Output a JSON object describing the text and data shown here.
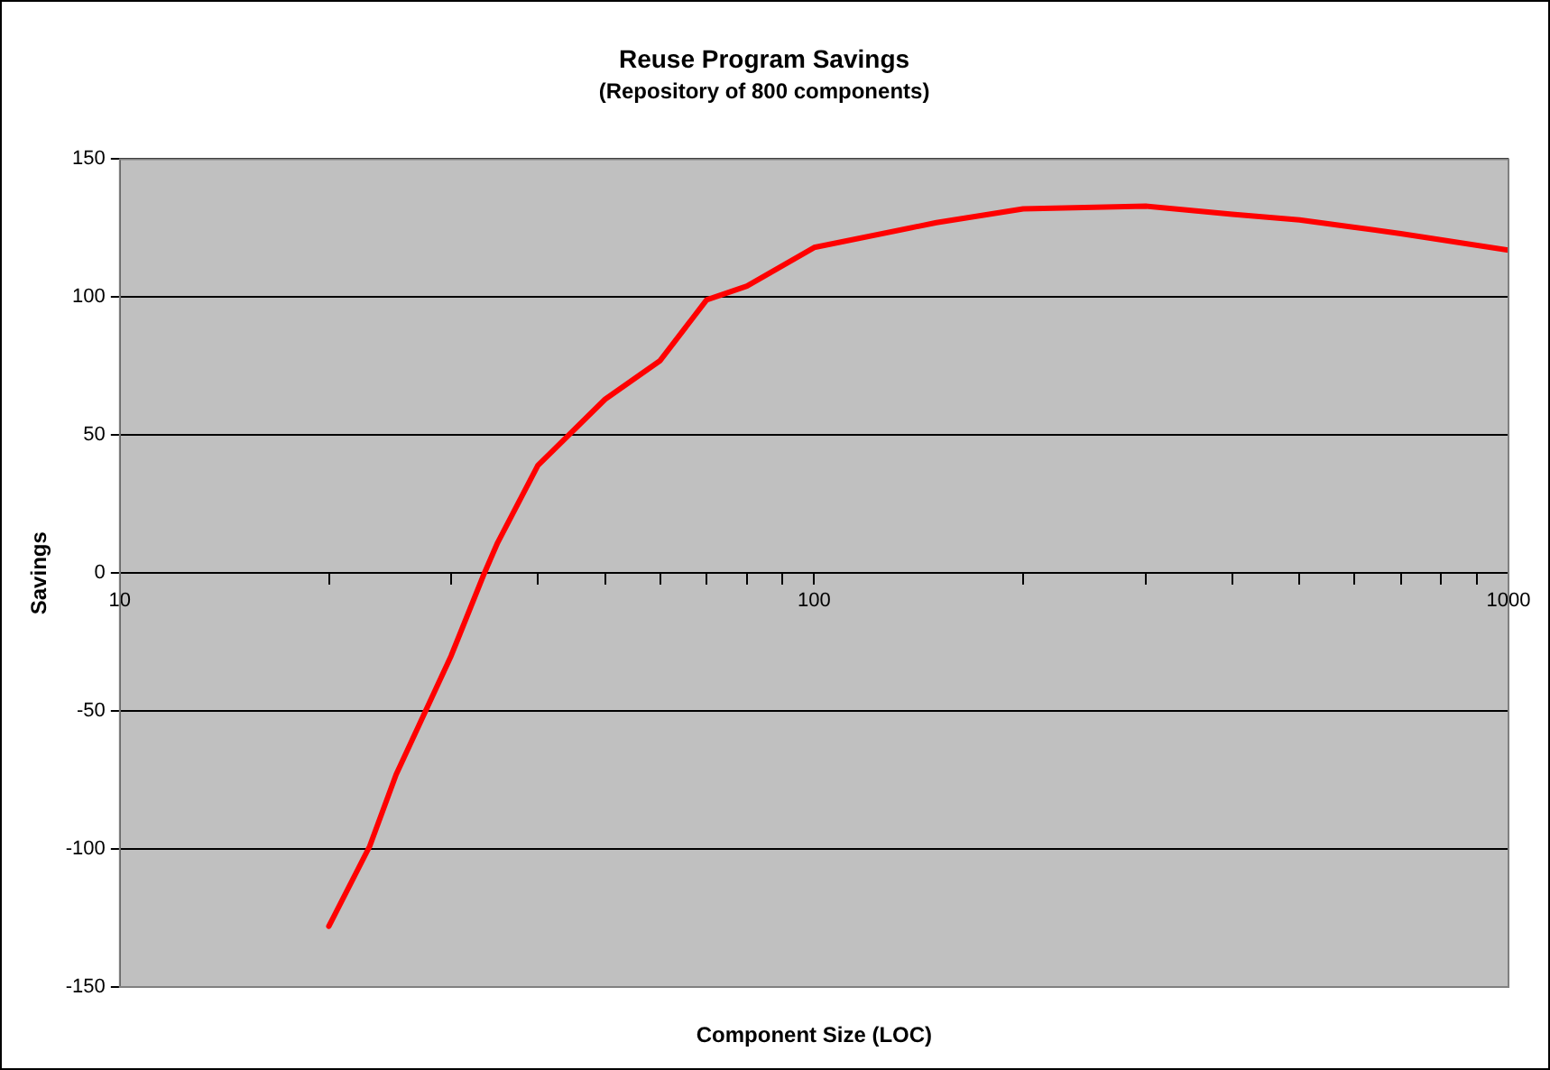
{
  "chart_data": {
    "type": "line",
    "title": "Reuse Program Savings",
    "subtitle": "(Repository of 800 components)",
    "xlabel": "Component Size (LOC)",
    "ylabel": "Savings",
    "log": "x",
    "xlim": [
      10,
      1000
    ],
    "xticks": [
      10,
      {
        "value": 20,
        "label": null
      },
      {
        "value": 30,
        "label": null
      },
      {
        "value": 40,
        "label": null
      },
      {
        "value": 50,
        "label": null
      },
      {
        "value": 60,
        "label": null
      },
      {
        "value": 70,
        "label": null
      },
      {
        "value": 80,
        "label": null
      },
      {
        "value": 90,
        "label": null
      },
      100,
      {
        "value": 200,
        "label": null
      },
      {
        "value": 300,
        "label": null
      },
      {
        "value": 400,
        "label": null
      },
      {
        "value": 500,
        "label": null
      },
      {
        "value": 600,
        "label": null
      },
      {
        "value": 700,
        "label": null
      },
      {
        "value": 800,
        "label": null
      },
      {
        "value": 900,
        "label": null
      },
      1000
    ],
    "ylim": [
      -150,
      150
    ],
    "yticks": [
      -150,
      -100,
      -50,
      0,
      50,
      100,
      150
    ],
    "grid": "y",
    "legend": false,
    "marker": "none",
    "line_style": "solid",
    "series": [
      {
        "color": "#ff0000",
        "x": [
          20,
          22.9,
          25,
          30,
          33.5,
          35,
          40,
          50,
          60,
          70,
          80,
          100,
          150,
          200,
          300,
          400,
          500,
          700,
          1000
        ],
        "values": [
          -128,
          -99,
          -73,
          -30,
          0,
          11,
          39,
          63,
          77,
          99,
          104,
          118,
          127,
          132,
          133,
          130,
          128,
          123,
          117
        ]
      }
    ]
  }
}
